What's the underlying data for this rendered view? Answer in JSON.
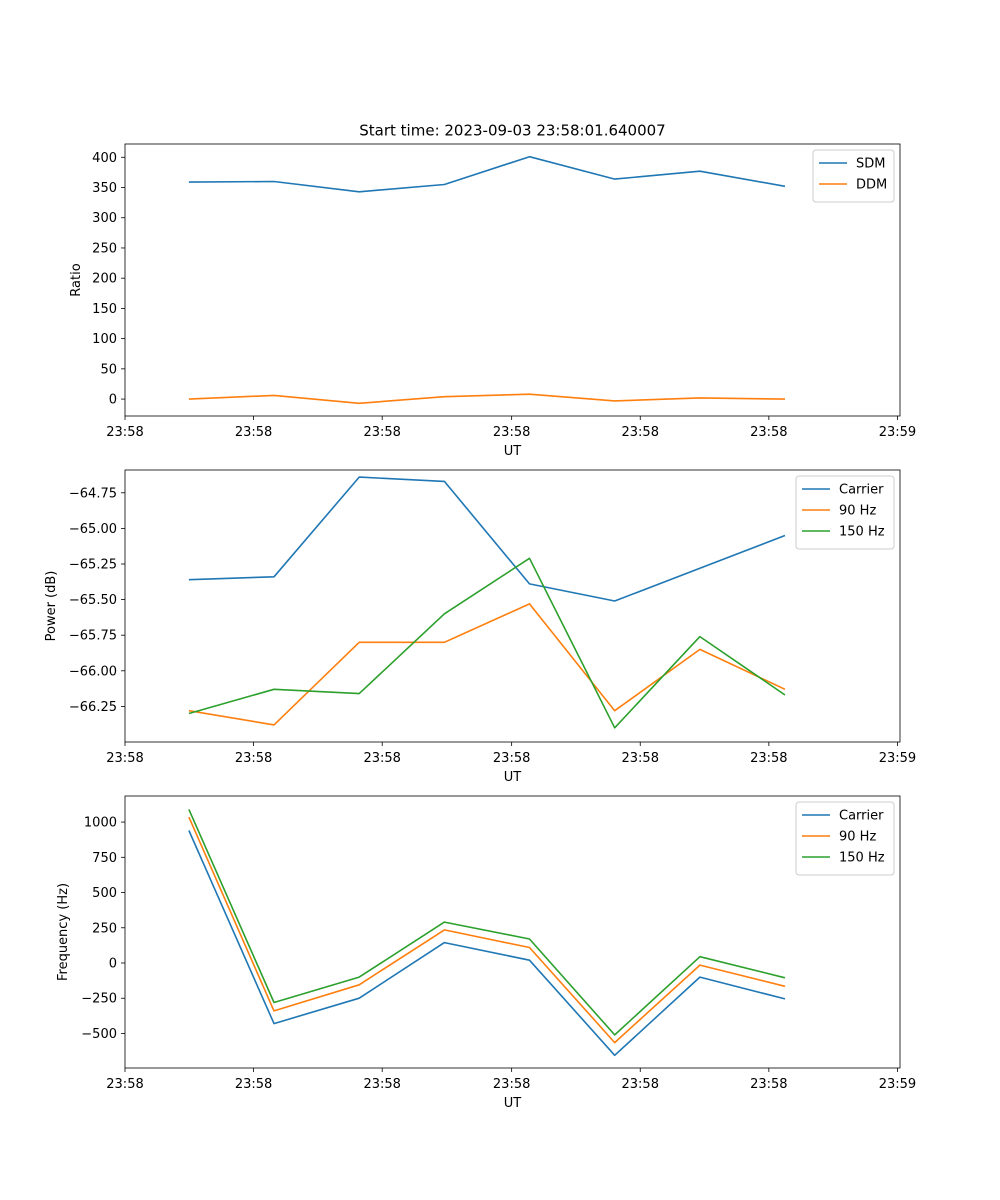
{
  "figure_title": "Start time: 2023-09-03 23:58:01.640007",
  "colors": {
    "c0": "#1f77b4",
    "c1": "#ff7f0e",
    "c2": "#2ca02c"
  },
  "chart_data": [
    {
      "type": "line",
      "title": "Start time: 2023-09-03 23:58:01.640007",
      "xlabel": "UT",
      "ylabel": "Ratio",
      "x": [
        0,
        1,
        2,
        3,
        4,
        5,
        6,
        7
      ],
      "xlim": [
        -0.75,
        8.35
      ],
      "ylim": [
        -28,
        422
      ],
      "xticks": [
        -0.75,
        0.76,
        2.27,
        3.79,
        5.3,
        6.81,
        8.32
      ],
      "xticklabels": [
        "23:58",
        "23:58",
        "23:58",
        "23:58",
        "23:58",
        "23:58",
        "23:59"
      ],
      "yticks": [
        0,
        50,
        100,
        150,
        200,
        250,
        300,
        350,
        400
      ],
      "yticklabels": [
        "0",
        "50",
        "100",
        "150",
        "200",
        "250",
        "300",
        "350",
        "400"
      ],
      "legend": "top-right",
      "series": [
        {
          "name": "SDM",
          "color": "#1f77b4",
          "values": [
            359,
            360,
            343,
            355,
            401,
            364,
            377,
            352
          ]
        },
        {
          "name": "DDM",
          "color": "#ff7f0e",
          "values": [
            0,
            6,
            -7,
            4,
            8,
            -3,
            2,
            0
          ]
        }
      ]
    },
    {
      "type": "line",
      "xlabel": "UT",
      "ylabel": "Power (dB)",
      "x": [
        0,
        1,
        2,
        3,
        4,
        5,
        6,
        7
      ],
      "xlim": [
        -0.75,
        8.35
      ],
      "ylim": [
        -66.5,
        -64.59
      ],
      "xticks": [
        -0.75,
        0.76,
        2.27,
        3.79,
        5.3,
        6.81,
        8.32
      ],
      "xticklabels": [
        "23:58",
        "23:58",
        "23:58",
        "23:58",
        "23:58",
        "23:58",
        "23:59"
      ],
      "yticks": [
        -66.25,
        -66.0,
        -65.75,
        -65.5,
        -65.25,
        -65.0,
        -64.75
      ],
      "yticklabels": [
        "−66.25",
        "−66.00",
        "−65.75",
        "−65.50",
        "−65.25",
        "−65.00",
        "−64.75"
      ],
      "legend": "top-right",
      "series": [
        {
          "name": "Carrier",
          "color": "#1f77b4",
          "values": [
            -65.36,
            -65.34,
            -64.64,
            -64.67,
            -65.39,
            -65.51,
            -65.28,
            -65.05
          ]
        },
        {
          "name": "90 Hz",
          "color": "#ff7f0e",
          "values": [
            -66.28,
            -66.38,
            -65.8,
            -65.8,
            -65.53,
            -66.28,
            -65.85,
            -66.13
          ]
        },
        {
          "name": "150 Hz",
          "color": "#2ca02c",
          "values": [
            -66.3,
            -66.13,
            -66.16,
            -65.6,
            -65.21,
            -66.4,
            -65.76,
            -66.17
          ]
        }
      ]
    },
    {
      "type": "line",
      "xlabel": "UT",
      "ylabel": "Frequency (Hz)",
      "x": [
        0,
        1,
        2,
        3,
        4,
        5,
        6,
        7
      ],
      "xlim": [
        -0.75,
        8.35
      ],
      "ylim": [
        -745,
        1185
      ],
      "xticks": [
        -0.75,
        0.76,
        2.27,
        3.79,
        5.3,
        6.81,
        8.32
      ],
      "xticklabels": [
        "23:58",
        "23:58",
        "23:58",
        "23:58",
        "23:58",
        "23:58",
        "23:59"
      ],
      "yticks": [
        -500,
        -250,
        0,
        250,
        500,
        750,
        1000
      ],
      "yticklabels": [
        "−500",
        "−250",
        "0",
        "250",
        "500",
        "750",
        "1000"
      ],
      "legend": "top-right",
      "series": [
        {
          "name": "Carrier",
          "color": "#1f77b4",
          "values": [
            940,
            -430,
            -250,
            145,
            20,
            -655,
            -100,
            -255
          ]
        },
        {
          "name": "90 Hz",
          "color": "#ff7f0e",
          "values": [
            1035,
            -340,
            -155,
            235,
            110,
            -565,
            -15,
            -165
          ]
        },
        {
          "name": "150 Hz",
          "color": "#2ca02c",
          "values": [
            1090,
            -280,
            -100,
            290,
            170,
            -510,
            45,
            -105
          ]
        }
      ]
    }
  ]
}
